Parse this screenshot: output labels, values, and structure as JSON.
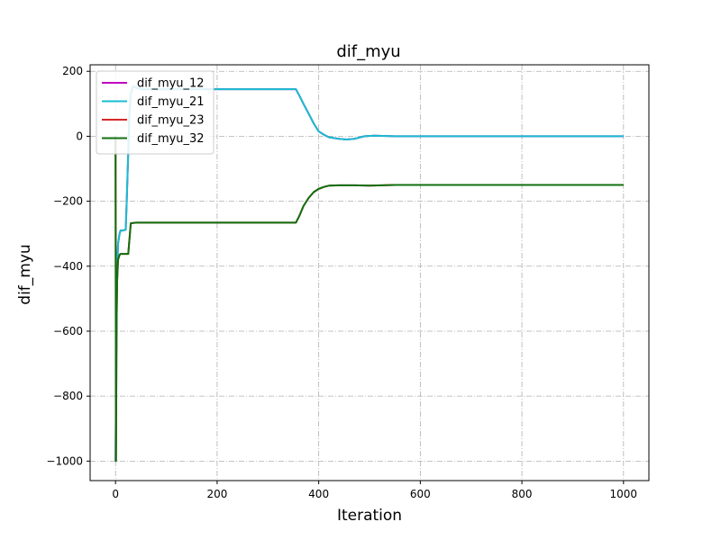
{
  "chart_data": {
    "type": "line",
    "title": "dif_myu",
    "xlabel": "Iteration",
    "ylabel": "dif_myu",
    "xlim": [
      -50,
      1050
    ],
    "ylim": [
      -1060,
      220
    ],
    "x_ticks": [
      0,
      200,
      400,
      600,
      800,
      1000
    ],
    "y_ticks": [
      200,
      0,
      -200,
      -400,
      -600,
      -800,
      -1000
    ],
    "x_tick_labels": [
      "0",
      "200",
      "400",
      "600",
      "800",
      "1000"
    ],
    "y_tick_labels": [
      "200",
      "0",
      "−200",
      "−400",
      "−600",
      "−800",
      "−1000"
    ],
    "grid": true,
    "grid_style": "dashdot",
    "legend_position": "upper-left",
    "series": [
      {
        "name": "dif_myu_12",
        "color": "#bf00bf",
        "x": [
          0,
          1,
          2,
          3,
          5,
          8,
          10,
          12,
          15,
          18,
          20,
          22,
          25,
          27,
          30,
          35,
          40,
          50,
          60,
          100,
          200,
          300,
          355,
          362,
          370,
          380,
          390,
          400,
          410,
          420,
          440,
          455,
          470,
          490,
          510,
          550,
          600,
          700,
          800,
          900,
          1000
        ],
        "y": [
          -1000,
          -800,
          -560,
          -420,
          -330,
          -300,
          -290,
          -290,
          -290,
          -288,
          -288,
          -200,
          -50,
          60,
          130,
          155,
          150,
          145,
          145,
          145,
          145,
          145,
          145,
          125,
          100,
          70,
          40,
          15,
          5,
          -3,
          -8,
          -10,
          -8,
          0,
          2,
          0,
          0,
          0,
          0,
          0,
          0
        ]
      },
      {
        "name": "dif_myu_21",
        "color": "#17becf",
        "x": [
          0,
          1,
          2,
          3,
          5,
          8,
          10,
          12,
          15,
          18,
          20,
          22,
          25,
          27,
          30,
          35,
          40,
          50,
          60,
          100,
          200,
          300,
          355,
          362,
          370,
          380,
          390,
          400,
          410,
          420,
          440,
          455,
          470,
          490,
          510,
          550,
          600,
          700,
          800,
          900,
          1000
        ],
        "y": [
          -1000,
          -800,
          -560,
          -420,
          -330,
          -300,
          -290,
          -290,
          -290,
          -288,
          -288,
          -200,
          -50,
          60,
          130,
          155,
          150,
          145,
          145,
          145,
          145,
          145,
          145,
          125,
          100,
          70,
          40,
          15,
          5,
          -3,
          -8,
          -10,
          -8,
          0,
          2,
          0,
          0,
          0,
          0,
          0,
          0
        ]
      },
      {
        "name": "dif_myu_23",
        "color": "#d62728",
        "x": [
          0,
          1,
          2,
          3,
          5,
          8,
          10,
          15,
          20,
          25,
          30,
          40,
          60,
          100,
          200,
          300,
          355,
          362,
          370,
          380,
          390,
          400,
          410,
          420,
          440,
          470,
          500,
          550,
          600,
          700,
          800,
          900,
          1000
        ],
        "y": [
          0,
          -1000,
          -600,
          -450,
          -380,
          -365,
          -362,
          -362,
          -362,
          -362,
          -268,
          -266,
          -266,
          -266,
          -266,
          -266,
          -266,
          -245,
          -215,
          -190,
          -172,
          -162,
          -156,
          -152,
          -151,
          -151,
          -152,
          -150,
          -150,
          -150,
          -150,
          -150,
          -150
        ]
      },
      {
        "name": "dif_myu_32",
        "color": "#107010",
        "x": [
          0,
          1,
          2,
          3,
          5,
          8,
          10,
          15,
          20,
          25,
          30,
          40,
          60,
          100,
          200,
          300,
          355,
          362,
          370,
          380,
          390,
          400,
          410,
          420,
          440,
          470,
          500,
          550,
          600,
          700,
          800,
          900,
          1000
        ],
        "y": [
          0,
          -1000,
          -600,
          -450,
          -380,
          -365,
          -362,
          -362,
          -362,
          -362,
          -268,
          -266,
          -266,
          -266,
          -266,
          -266,
          -266,
          -245,
          -215,
          -190,
          -172,
          -162,
          -156,
          -152,
          -151,
          -151,
          -152,
          -150,
          -150,
          -150,
          -150,
          -150,
          -150
        ]
      }
    ]
  }
}
